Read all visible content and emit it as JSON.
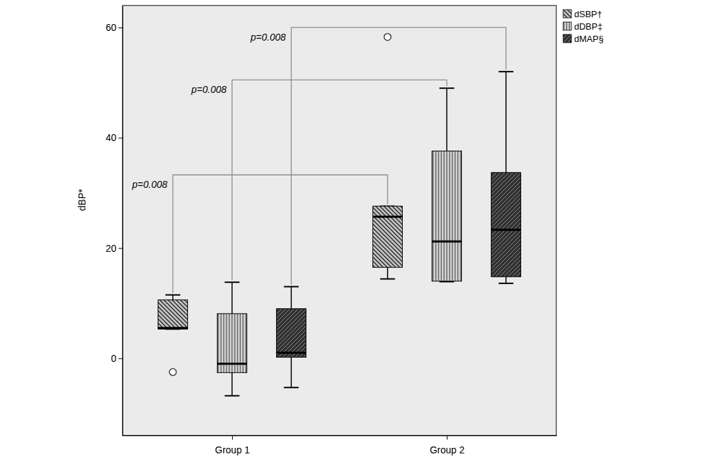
{
  "chart_data": {
    "type": "box",
    "y_label": "dBP*",
    "categories": [
      "Group 1",
      "Group 2"
    ],
    "ylim": [
      -14,
      64
    ],
    "yticks": [
      0,
      20,
      40,
      60
    ],
    "legend": "outside-top-right",
    "annotations": [
      "p=0.008",
      "p=0.008",
      "p=0.008"
    ],
    "series": [
      {
        "name": "dSBP†",
        "color": "#c2c2c2",
        "values": [
          {
            "min": 5.3,
            "q1": 5.3,
            "median": 5.5,
            "q3": 10.6,
            "max": 11.5,
            "outliers": [
              -2.5
            ]
          },
          {
            "min": 14.4,
            "q1": 16.5,
            "median": 25.7,
            "q3": 27.6,
            "max": 27.6,
            "outliers": [
              58.3
            ]
          }
        ]
      },
      {
        "name": "dDBP‡",
        "color": "#d4d4d4",
        "values": [
          {
            "min": -6.8,
            "q1": -2.6,
            "median": -1.0,
            "q3": 8.1,
            "max": 13.8,
            "outliers": []
          },
          {
            "min": 13.9,
            "q1": 14.0,
            "median": 21.2,
            "q3": 37.6,
            "max": 49.0,
            "outliers": []
          }
        ]
      },
      {
        "name": "dMAP§",
        "color": "#303030",
        "values": [
          {
            "min": -5.3,
            "q1": 0.2,
            "median": 1.0,
            "q3": 9.0,
            "max": 13.0,
            "outliers": []
          },
          {
            "min": 13.6,
            "q1": 14.8,
            "median": 23.3,
            "q3": 33.7,
            "max": 52.0,
            "outliers": []
          }
        ]
      }
    ]
  }
}
